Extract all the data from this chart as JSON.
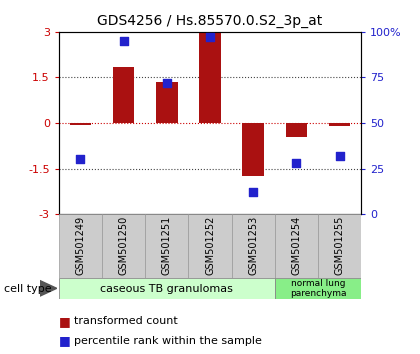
{
  "title": "GDS4256 / Hs.85570.0.S2_3p_at",
  "samples": [
    "GSM501249",
    "GSM501250",
    "GSM501251",
    "GSM501252",
    "GSM501253",
    "GSM501254",
    "GSM501255"
  ],
  "transformed_counts": [
    -0.05,
    1.85,
    1.35,
    2.95,
    -1.75,
    -0.45,
    -0.1
  ],
  "percentile_ranks": [
    30,
    95,
    72,
    97,
    12,
    28,
    32
  ],
  "ylim_left": [
    -3,
    3
  ],
  "yticks_left": [
    -3,
    -1.5,
    0,
    1.5,
    3
  ],
  "ytick_labels_left": [
    "-3",
    "-1.5",
    "0",
    "1.5",
    "3"
  ],
  "yticks_right": [
    0,
    25,
    50,
    75,
    100
  ],
  "ytick_labels_right": [
    "0",
    "25",
    "50",
    "75",
    "100%"
  ],
  "bar_color": "#aa1111",
  "dot_color": "#2222cc",
  "hline_color": "#cc0000",
  "dotted_color": "#444444",
  "group1_indices": [
    0,
    1,
    2,
    3,
    4
  ],
  "group1_label": "caseous TB granulomas",
  "group1_color": "#ccffcc",
  "group2_indices": [
    5,
    6
  ],
  "group2_label": "normal lung\nparenchyma",
  "group2_color": "#88ee88",
  "legend_bar_label": "transformed count",
  "legend_dot_label": "percentile rank within the sample",
  "cell_type_label": "cell type",
  "background_color": "#ffffff",
  "bar_width": 0.5,
  "dot_size": 40,
  "title_fontsize": 10,
  "axis_fontsize": 8,
  "label_fontsize": 7,
  "legend_fontsize": 8
}
